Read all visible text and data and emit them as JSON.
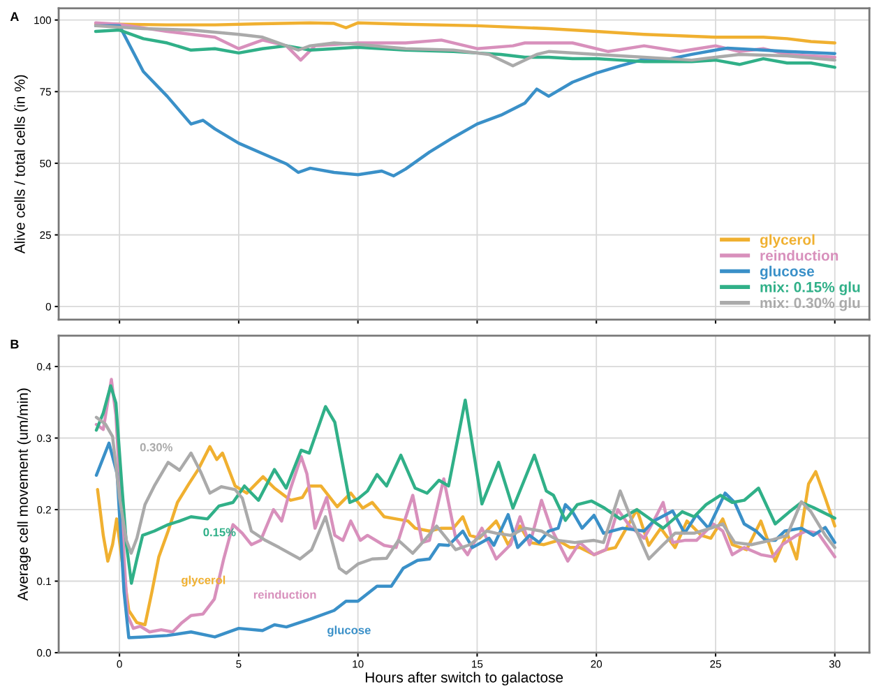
{
  "chart_data": [
    {
      "type": "line",
      "title": "A",
      "ylabel": "Alive cells / total cells (in %)",
      "xlim": [
        -2.55,
        31.45
      ],
      "ylim": [
        -4.6,
        104.1
      ],
      "xticks": [
        0,
        5,
        10,
        15,
        20,
        25,
        30
      ],
      "yticks": [
        0,
        25,
        50,
        75,
        100
      ],
      "tick_labels": "y",
      "grid": true,
      "legend": "bottom right",
      "line_style": "solid",
      "marker": "none",
      "series": [
        {
          "name": "glycerol",
          "color": "#f0b030",
          "x": [
            -1,
            0,
            2,
            4,
            6,
            8,
            9,
            9.5,
            10,
            12,
            15,
            18,
            20,
            22,
            25,
            27,
            28,
            29,
            30
          ],
          "values": [
            98.5,
            98.5,
            98.3,
            98.3,
            98.7,
            99,
            98.8,
            97.3,
            99,
            98.5,
            98,
            97,
            96,
            95,
            94,
            94,
            93.5,
            92.5,
            92
          ]
        },
        {
          "name": "reinduction",
          "color": "#d890bc",
          "x": [
            -1,
            0,
            2,
            4,
            5,
            6,
            7,
            7.6,
            8.2,
            10,
            12,
            13.5,
            15,
            16.5,
            17,
            19,
            20.5,
            22,
            23.5,
            25,
            26,
            27,
            28,
            30
          ],
          "values": [
            99,
            98.5,
            96,
            94,
            90,
            93,
            91,
            86,
            91,
            92,
            92,
            93,
            90,
            91,
            92,
            92,
            89,
            91,
            89,
            91,
            89,
            90,
            88,
            87
          ]
        },
        {
          "name": "glucose",
          "color": "#3a90c8",
          "x": [
            -1,
            0,
            1,
            2,
            3,
            3.5,
            4,
            5,
            6,
            7,
            7.5,
            8,
            9,
            10,
            11,
            11.5,
            12,
            13,
            14,
            15,
            16,
            17,
            17.5,
            18,
            19,
            20,
            21,
            22,
            23,
            24,
            25,
            25.5,
            27,
            28,
            30
          ],
          "values": [
            98,
            98,
            82,
            73.4,
            63.7,
            65,
            62,
            57,
            53.4,
            49.8,
            46.8,
            48.3,
            46.8,
            46,
            47.3,
            45.6,
            48,
            53.9,
            59,
            63.7,
            66.8,
            71,
            75.9,
            73.4,
            78.3,
            81.5,
            84,
            86.3,
            86.3,
            88,
            89.5,
            90.2,
            89.5,
            89,
            88.3
          ]
        },
        {
          "name": "mix: 0.15% glu",
          "color": "#30b088",
          "x": [
            -1,
            0,
            1,
            2,
            3,
            4,
            5,
            6,
            7,
            8,
            9,
            10,
            11,
            12,
            14,
            15,
            16,
            17,
            18,
            19,
            20,
            21,
            22,
            23,
            24,
            25,
            26,
            27,
            28,
            29,
            30
          ],
          "values": [
            96,
            96.5,
            93.5,
            92,
            89.5,
            90,
            88.5,
            90,
            91,
            89.5,
            90,
            90.5,
            90,
            89.5,
            89,
            88.5,
            88,
            87,
            87,
            86.5,
            86.5,
            86,
            85.5,
            85.5,
            85.5,
            86,
            84.5,
            86.5,
            85,
            85,
            83.5
          ]
        },
        {
          "name": "mix: 0.30% glu",
          "color": "#aaaaaa",
          "x": [
            -1,
            1,
            3,
            5,
            6,
            7,
            7.5,
            8,
            9,
            10,
            12,
            14,
            15.5,
            16.5,
            17.5,
            18,
            20,
            22,
            24,
            25,
            26,
            28,
            30
          ],
          "values": [
            98,
            97,
            96.5,
            95,
            94,
            91,
            89.5,
            91,
            92,
            91.5,
            90,
            89.5,
            88,
            84,
            88,
            89,
            88,
            87,
            86,
            87,
            88,
            87.5,
            86
          ]
        }
      ]
    },
    {
      "type": "line",
      "title": "B",
      "xlabel": "Hours after switch to galactose",
      "ylabel": "Average cell movement (um/min)",
      "xlim": [
        -2.55,
        31.45
      ],
      "ylim": [
        0,
        0.443
      ],
      "xticks": [
        0,
        5,
        10,
        15,
        20,
        25,
        30
      ],
      "yticks": [
        {
          "value": 0,
          "label": "0.0"
        },
        0.1,
        0.2,
        0.3,
        0.4
      ],
      "grid": true,
      "line_style": "solid",
      "marker": "none",
      "annotations": [
        "glycerol",
        "reinduction",
        "glucose",
        "0.15%",
        "0.30%"
      ],
      "series": [
        {
          "color": "#f0b030",
          "x": [
            -0.92,
            -0.68,
            -0.49,
            -0.29,
            -0.12,
            0.15,
            0.39,
            0.73,
            1.07,
            1.36,
            1.65,
            2.04,
            2.43,
            2.91,
            3.3,
            3.79,
            4.08,
            4.32,
            4.85,
            5.34,
            6.02,
            6.5,
            7.18,
            7.67,
            7.96,
            8.45,
            9.13,
            9.7,
            10.2,
            10.6,
            11.1,
            11.6,
            12.1,
            12.4,
            13.0,
            13.5,
            14.0,
            14.4,
            14.7,
            15.1,
            15.8,
            16.3,
            16.8,
            17.2,
            17.8,
            18.4,
            18.9,
            19.3,
            19.9,
            20.4,
            20.8,
            21.7,
            22.2,
            22.7,
            23.3,
            23.8,
            24.4,
            24.8,
            25.3,
            25.7,
            26.3,
            26.9,
            27.5,
            28.0,
            28.4,
            28.9,
            29.2,
            29.6,
            30.0
          ],
          "values": [
            0.228,
            0.164,
            0.128,
            0.151,
            0.187,
            0.118,
            0.059,
            0.042,
            0.039,
            0.085,
            0.134,
            0.17,
            0.21,
            0.236,
            0.256,
            0.288,
            0.27,
            0.279,
            0.233,
            0.223,
            0.246,
            0.23,
            0.213,
            0.217,
            0.233,
            0.233,
            0.204,
            0.223,
            0.202,
            0.21,
            0.19,
            0.187,
            0.184,
            0.174,
            0.17,
            0.174,
            0.174,
            0.19,
            0.164,
            0.16,
            0.184,
            0.151,
            0.177,
            0.154,
            0.151,
            0.157,
            0.147,
            0.147,
            0.137,
            0.144,
            0.147,
            0.2,
            0.15,
            0.174,
            0.147,
            0.184,
            0.164,
            0.16,
            0.187,
            0.151,
            0.144,
            0.184,
            0.128,
            0.167,
            0.131,
            0.236,
            0.253,
            0.216,
            0.177
          ]
        },
        {
          "color": "#d890bc",
          "x": [
            -0.97,
            -0.68,
            -0.34,
            -0.15,
            0.1,
            0.34,
            0.58,
            0.87,
            1.26,
            1.75,
            2.23,
            2.62,
            3.0,
            3.5,
            3.98,
            4.37,
            4.76,
            5.15,
            5.53,
            5.92,
            6.46,
            6.8,
            7.18,
            7.62,
            7.86,
            8.2,
            8.69,
            9.03,
            9.37,
            9.7,
            10.1,
            10.4,
            11.1,
            11.6,
            12.3,
            12.7,
            13.0,
            13.6,
            14.1,
            14.6,
            15.2,
            15.8,
            16.4,
            16.8,
            17.2,
            17.7,
            18.1,
            18.8,
            19.3,
            19.9,
            20.4,
            20.9,
            21.4,
            22.0,
            22.4,
            22.8,
            23.2,
            23.7,
            24.2,
            24.9,
            25.3,
            25.7,
            26.2,
            26.9,
            27.4,
            27.8,
            28.4,
            28.8,
            29.3,
            30.0
          ],
          "values": [
            0.319,
            0.312,
            0.382,
            0.332,
            0.184,
            0.052,
            0.034,
            0.037,
            0.029,
            0.032,
            0.029,
            0.042,
            0.052,
            0.054,
            0.075,
            0.131,
            0.179,
            0.167,
            0.151,
            0.157,
            0.2,
            0.184,
            0.23,
            0.274,
            0.25,
            0.174,
            0.217,
            0.164,
            0.157,
            0.184,
            0.157,
            0.164,
            0.15,
            0.147,
            0.22,
            0.154,
            0.157,
            0.243,
            0.16,
            0.137,
            0.174,
            0.131,
            0.151,
            0.19,
            0.151,
            0.213,
            0.174,
            0.128,
            0.154,
            0.137,
            0.144,
            0.2,
            0.177,
            0.16,
            0.184,
            0.21,
            0.154,
            0.157,
            0.157,
            0.18,
            0.17,
            0.137,
            0.147,
            0.137,
            0.134,
            0.151,
            0.164,
            0.17,
            0.167,
            0.134
          ]
        },
        {
          "color": "#3a90c8",
          "x": [
            -0.97,
            -0.44,
            -0.1,
            0.19,
            0.39,
            1,
            2,
            3,
            4,
            5,
            6,
            6.5,
            7,
            8,
            9,
            9.5,
            10,
            10.8,
            11.4,
            11.9,
            12.5,
            13.0,
            13.4,
            13.8,
            14.4,
            14.8,
            15.5,
            15.7,
            16.3,
            16.7,
            17.2,
            17.6,
            18.0,
            18.4,
            18.7,
            19.0,
            19.4,
            19.9,
            20.3,
            21.1,
            22.0,
            22.4,
            23.2,
            23.7,
            24.2,
            24.7,
            25.4,
            25.8,
            26.2,
            26.7,
            27.1,
            27.5,
            27.9,
            28.6,
            29.1,
            29.6,
            30.0
          ],
          "values": [
            0.248,
            0.293,
            0.25,
            0.085,
            0.021,
            0.022,
            0.024,
            0.029,
            0.022,
            0.034,
            0.031,
            0.039,
            0.036,
            0.047,
            0.059,
            0.072,
            0.072,
            0.093,
            0.093,
            0.118,
            0.129,
            0.131,
            0.151,
            0.15,
            0.17,
            0.147,
            0.16,
            0.15,
            0.193,
            0.147,
            0.164,
            0.154,
            0.17,
            0.174,
            0.207,
            0.197,
            0.174,
            0.192,
            0.167,
            0.174,
            0.17,
            0.184,
            0.198,
            0.167,
            0.193,
            0.174,
            0.223,
            0.21,
            0.18,
            0.17,
            0.157,
            0.157,
            0.17,
            0.174,
            0.164,
            0.175,
            0.154
          ]
        },
        {
          "color": "#30b088",
          "x": [
            -0.97,
            -0.68,
            -0.37,
            -0.15,
            0.1,
            0.29,
            0.5,
            0.73,
            0.97,
            1.46,
            2.04,
            2.52,
            3.0,
            3.69,
            4.17,
            4.76,
            5.24,
            5.83,
            6.5,
            6.99,
            7.62,
            7.96,
            8.64,
            9.03,
            9.66,
            10.0,
            10.4,
            10.8,
            11.2,
            11.8,
            12.4,
            12.9,
            13.4,
            13.8,
            14.5,
            15.2,
            15.9,
            16.5,
            17.4,
            17.9,
            18.2,
            18.7,
            19.2,
            19.8,
            20.3,
            21.0,
            21.7,
            22.8,
            23.6,
            24.1,
            24.6,
            25.2,
            25.7,
            26.2,
            26.8,
            27.5,
            28.1,
            28.6,
            29.1,
            30.0
          ],
          "values": [
            0.311,
            0.335,
            0.373,
            0.349,
            0.233,
            0.151,
            0.097,
            0.131,
            0.164,
            0.17,
            0.179,
            0.184,
            0.19,
            0.187,
            0.205,
            0.21,
            0.233,
            0.213,
            0.256,
            0.23,
            0.283,
            0.279,
            0.344,
            0.322,
            0.21,
            0.215,
            0.226,
            0.249,
            0.233,
            0.276,
            0.23,
            0.223,
            0.241,
            0.233,
            0.353,
            0.208,
            0.266,
            0.202,
            0.276,
            0.226,
            0.22,
            0.185,
            0.207,
            0.212,
            0.203,
            0.187,
            0.2,
            0.174,
            0.197,
            0.19,
            0.207,
            0.22,
            0.21,
            0.213,
            0.23,
            0.18,
            0.197,
            0.21,
            0.203,
            0.188
          ]
        },
        {
          "color": "#aaaaaa",
          "x": [
            -0.97,
            -0.58,
            -0.29,
            0,
            0.29,
            0.49,
            0.73,
            1.07,
            1.46,
            2.04,
            2.52,
            3.0,
            3.4,
            3.79,
            4.27,
            4.85,
            5.15,
            5.53,
            6.12,
            6.7,
            7.57,
            8.06,
            8.64,
            9.22,
            9.51,
            10.0,
            10.6,
            11.2,
            11.7,
            12.3,
            12.6,
            13.3,
            14.1,
            14.7,
            15.4,
            15.8,
            16.4,
            17.0,
            17.7,
            18.4,
            19.1,
            19.9,
            20.3,
            21.0,
            21.5,
            22.2,
            22.8,
            23.3,
            24.1,
            24.8,
            25.3,
            25.8,
            26.5,
            27.3,
            28.0,
            28.6,
            29.0,
            29.6,
            30.0
          ],
          "values": [
            0.329,
            0.319,
            0.302,
            0.217,
            0.157,
            0.139,
            0.16,
            0.207,
            0.233,
            0.266,
            0.255,
            0.279,
            0.253,
            0.223,
            0.232,
            0.228,
            0.216,
            0.17,
            0.157,
            0.147,
            0.131,
            0.144,
            0.19,
            0.118,
            0.111,
            0.124,
            0.131,
            0.132,
            0.157,
            0.139,
            0.15,
            0.177,
            0.144,
            0.151,
            0.17,
            0.167,
            0.164,
            0.174,
            0.17,
            0.157,
            0.154,
            0.157,
            0.154,
            0.226,
            0.184,
            0.131,
            0.151,
            0.167,
            0.167,
            0.174,
            0.18,
            0.154,
            0.151,
            0.157,
            0.164,
            0.211,
            0.197,
            0.164,
            0.147
          ]
        }
      ]
    }
  ]
}
